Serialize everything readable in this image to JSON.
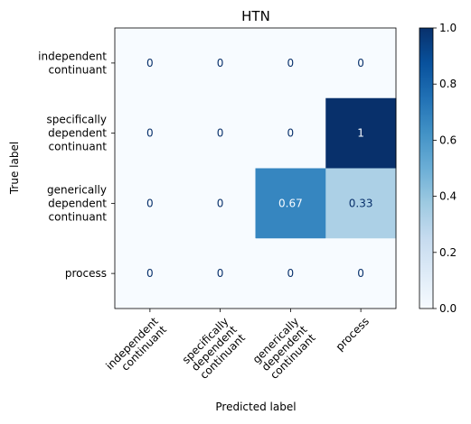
{
  "chart_data": {
    "type": "heatmap",
    "title": "HTN",
    "xlabel": "Predicted label",
    "ylabel": "True label",
    "row_labels": [
      [
        "independent",
        "continuant"
      ],
      [
        "specifically",
        "dependent",
        "continuant"
      ],
      [
        "generically",
        "dependent",
        "continuant"
      ],
      [
        "process"
      ]
    ],
    "col_labels": [
      [
        "independent",
        "continuant"
      ],
      [
        "specifically",
        "dependent",
        "continuant"
      ],
      [
        "generically",
        "dependent",
        "continuant"
      ],
      [
        "process"
      ]
    ],
    "values": [
      [
        0,
        0,
        0,
        0
      ],
      [
        0,
        0,
        0,
        1
      ],
      [
        0,
        0,
        0.67,
        0.33
      ],
      [
        0,
        0,
        0,
        0
      ]
    ],
    "value_labels": [
      [
        "0",
        "0",
        "0",
        "0"
      ],
      [
        "0",
        "0",
        "0",
        "1"
      ],
      [
        "0",
        "0",
        "0.67",
        "0.33"
      ],
      [
        "0",
        "0",
        "0",
        "0"
      ]
    ],
    "colorbar": {
      "range": [
        0.0,
        1.0
      ],
      "ticks": [
        0.0,
        0.2,
        0.4,
        0.6,
        0.8,
        1.0
      ],
      "tick_labels": [
        "0.0",
        "0.2",
        "0.4",
        "0.6",
        "0.8",
        "1.0"
      ]
    },
    "colormap": "Blues",
    "colormap_stops": [
      "#f7fbff",
      "#deebf7",
      "#c6dbef",
      "#9ecae1",
      "#6baed6",
      "#4292c6",
      "#2171b5",
      "#08519c",
      "#08306b"
    ],
    "grid": false
  }
}
